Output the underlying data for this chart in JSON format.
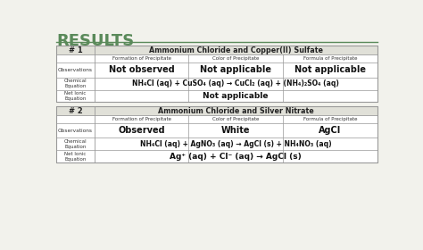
{
  "title": "RESULTS",
  "title_color": "#5a8a5a",
  "bg_color": "#f2f2ec",
  "table_bg": "#ffffff",
  "header_bg": "#e0e0d8",
  "border_color": "#999999",
  "table1_num": "# 1",
  "table1_header": "Ammonium Chloride and Copper(II) Sulfate",
  "table2_num": "# 2",
  "table2_header": "Ammonium Chloride and Silver Nitrate",
  "col_headers": [
    "Formation of Precipitate",
    "Color of Precipitate",
    "Formula of Precipitate"
  ],
  "row_label_obs": "Observations",
  "row_label_chem": "Chemical\nEquation",
  "row_label_net": "Net Ionic\nEquation",
  "table1_obs": [
    "Not observed",
    "Not applicable",
    "Not applicable"
  ],
  "table1_chem": "NH₄Cl (aq) + CuSO₄ (aq) → CuCl₂ (aq) + (NH₄)₂SO₄ (aq)",
  "table1_net": "Not applicable",
  "table2_obs": [
    "Observed",
    "White",
    "AgCl"
  ],
  "table2_chem": "NH₄Cl (aq) + AgNO₃ (aq) → AgCl (s) + NH₄NO₃ (aq)",
  "table2_net": "Ag⁺ (aq) + Cl⁻ (aq) → AgCl (s)"
}
